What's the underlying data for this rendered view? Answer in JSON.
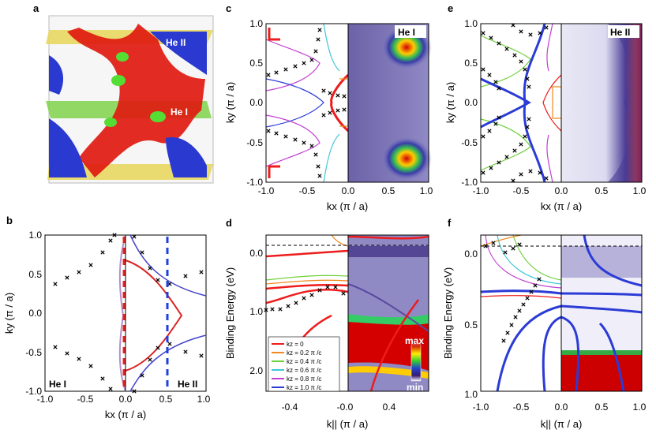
{
  "panels": {
    "a": {
      "label": "a",
      "tag_top": "He II",
      "tag_bottom": "He I"
    },
    "b": {
      "label": "b",
      "tag_left": "He I",
      "tag_right": "He II",
      "xlabel": "kx (π / a)",
      "ylabel": "ky (π / a)",
      "xticks": [
        "-1.0",
        "-0.5",
        "0.0",
        "0.5",
        "1.0"
      ],
      "yticks": [
        "1.0",
        "0.5",
        "0.0",
        "-0.5",
        "-1.0"
      ]
    },
    "c": {
      "label": "c",
      "tag": "He I",
      "xlabel": "kx (π / a)",
      "ylabel": "ky (π / a)",
      "xticks": [
        "-1.0",
        "-0.5",
        "0.0",
        "0.5",
        "1.0"
      ],
      "yticks": [
        "1.0",
        "0.5",
        "0.0",
        "-0.5",
        "-1.0"
      ]
    },
    "d": {
      "label": "d",
      "xlabel": "k|| (π / a)",
      "ylabel": "Binding Energy (eV)",
      "xticks": [
        "-0.4",
        "-0.0",
        "0.4"
      ],
      "yticks": [
        "0.0",
        "1.0",
        "2.0"
      ],
      "cbar_max": "max",
      "cbar_min": "min",
      "legend": [
        "kz = 0",
        "kz = 0.2 π /c",
        "kz = 0.4 π /c",
        "kz = 0.6 π /c",
        "kz = 0.8 π /c",
        "kz = 1.0 π /c"
      ]
    },
    "e": {
      "label": "e",
      "tag": "He II",
      "xlabel": "kx (π / a)",
      "ylabel": "ky (π / a)",
      "xticks": [
        "-1.0",
        "-0.5",
        "0.0",
        "0.5",
        "1.0"
      ],
      "yticks": [
        "1.0",
        "0.5",
        "0.0",
        "-0.5",
        "-1.0"
      ]
    },
    "f": {
      "label": "f",
      "xlabel": "k|| (π / a)",
      "ylabel": "Binding Energy (eV)",
      "xticks": [
        "-1.0",
        "-0.5",
        "0.0",
        "0.5",
        "1.0"
      ],
      "yticks": [
        "0.0",
        "0.5",
        "1.0"
      ]
    }
  },
  "colors": {
    "kz0": "#ee1c1c",
    "kz02": "#f08a1e",
    "kz04": "#6fd13a",
    "kz06": "#3ec7d6",
    "kz08": "#c23fd0",
    "kz10": "#2b3bd6",
    "dash_red": "#ee2222",
    "dash_blue": "#1f3fe0"
  }
}
